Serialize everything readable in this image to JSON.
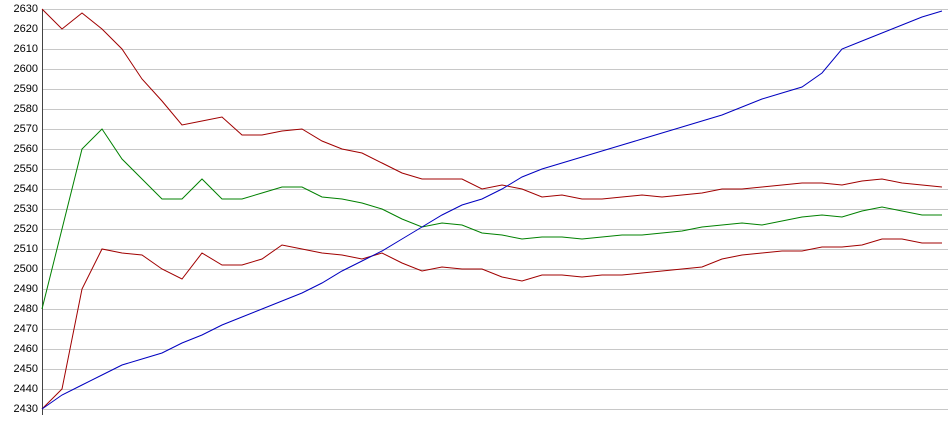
{
  "chart_data": {
    "type": "line",
    "ylim": [
      2430,
      2630
    ],
    "yticks": [
      2430,
      2440,
      2450,
      2460,
      2470,
      2480,
      2490,
      2500,
      2510,
      2520,
      2530,
      2540,
      2550,
      2560,
      2570,
      2580,
      2590,
      2600,
      2610,
      2620,
      2630
    ],
    "grid": true,
    "series": [
      {
        "color": "#a00000",
        "values": [
          2630,
          2620,
          2628,
          2620,
          2610,
          2595,
          2584,
          2572,
          2574,
          2576,
          2567,
          2567,
          2569,
          2570,
          2564,
          2560,
          2558,
          2553,
          2548,
          2545,
          2545,
          2545,
          2540,
          2542,
          2540,
          2536,
          2537,
          2535,
          2535,
          2536,
          2537,
          2536,
          2537,
          2538,
          2540,
          2540,
          2541,
          2542,
          2543,
          2543,
          2542,
          2544,
          2545,
          2543,
          2542,
          2541
        ]
      },
      {
        "color": "#008000",
        "values": [
          2480,
          2520,
          2560,
          2570,
          2555,
          2545,
          2535,
          2535,
          2545,
          2535,
          2535,
          2538,
          2541,
          2541,
          2536,
          2535,
          2533,
          2530,
          2525,
          2521,
          2523,
          2522,
          2518,
          2517,
          2515,
          2516,
          2516,
          2515,
          2516,
          2517,
          2517,
          2518,
          2519,
          2521,
          2522,
          2523,
          2522,
          2524,
          2526,
          2527,
          2526,
          2529,
          2531,
          2529,
          2527,
          2527
        ]
      },
      {
        "color": "#a00000",
        "values": [
          2430,
          2440,
          2490,
          2510,
          2508,
          2507,
          2500,
          2495,
          2508,
          2502,
          2502,
          2505,
          2512,
          2510,
          2508,
          2507,
          2505,
          2508,
          2503,
          2499,
          2501,
          2500,
          2500,
          2496,
          2494,
          2497,
          2497,
          2496,
          2497,
          2497,
          2498,
          2499,
          2500,
          2501,
          2505,
          2507,
          2508,
          2509,
          2509,
          2511,
          2511,
          2512,
          2515,
          2515,
          2513,
          2513
        ]
      },
      {
        "color": "#0000c0",
        "values": [
          2430,
          2437,
          2442,
          2447,
          2452,
          2455,
          2458,
          2463,
          2467,
          2472,
          2476,
          2480,
          2484,
          2488,
          2493,
          2499,
          2504,
          2509,
          2515,
          2521,
          2527,
          2532,
          2535,
          2540,
          2546,
          2550,
          2553,
          2556,
          2559,
          2562,
          2565,
          2568,
          2571,
          2574,
          2577,
          2581,
          2585,
          2588,
          2591,
          2598,
          2610,
          2614,
          2618,
          2622,
          2626,
          2629
        ]
      }
    ]
  }
}
